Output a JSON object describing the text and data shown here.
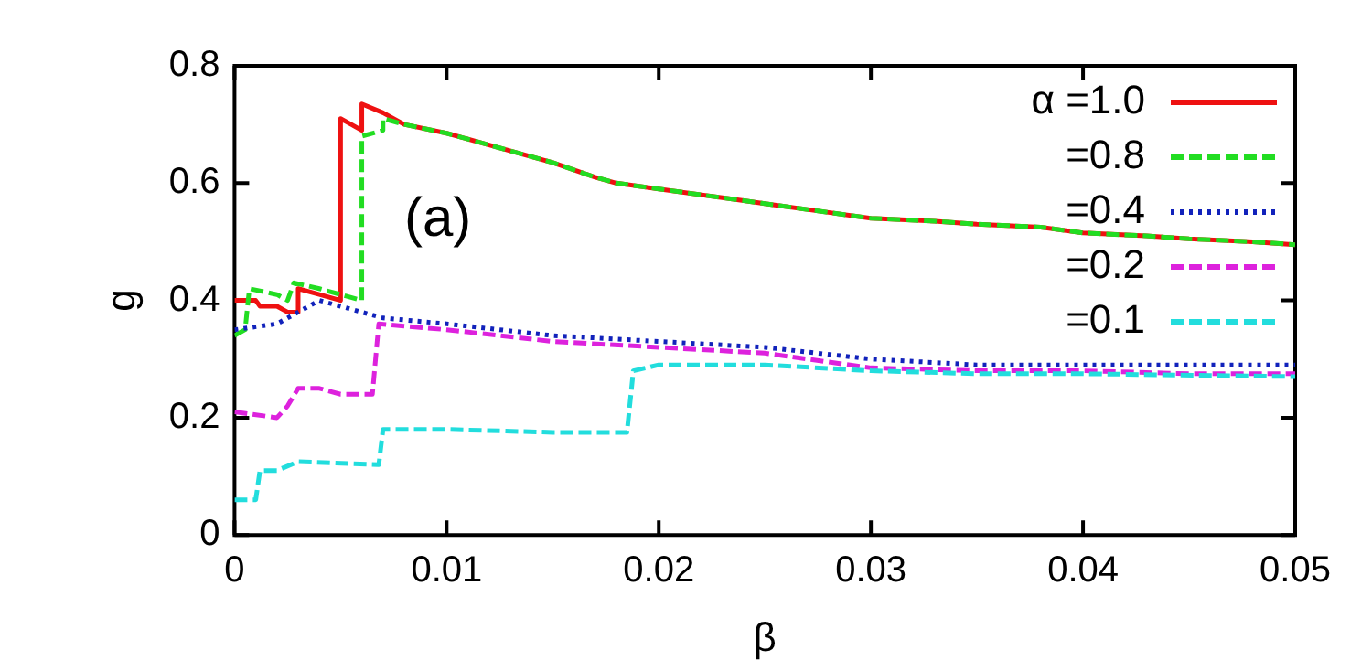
{
  "chart_data": {
    "type": "line",
    "xlabel": "β",
    "ylabel": "g",
    "xlim": [
      0,
      0.05
    ],
    "xticks": [
      0,
      0.01,
      0.02,
      0.03,
      0.04,
      0.05
    ],
    "ylim": [
      0,
      0.8
    ],
    "yticks": [
      0,
      0.2,
      0.4,
      0.6,
      0.8
    ],
    "grid": false,
    "legend": "top right",
    "marker": "none",
    "annotations": [
      "(a)"
    ],
    "series": [
      {
        "name": "α =1.0",
        "color": "#ee1111",
        "line_style": "solid",
        "x": [
          0,
          0.001,
          0.0012,
          0.002,
          0.0025,
          0.003,
          0.003,
          0.004,
          0.005,
          0.005,
          0.0055,
          0.006,
          0.006,
          0.007,
          0.008,
          0.01,
          0.012,
          0.015,
          0.017,
          0.018,
          0.02,
          0.023,
          0.025,
          0.028,
          0.03,
          0.033,
          0.035,
          0.038,
          0.04,
          0.043,
          0.045,
          0.048,
          0.05
        ],
        "values": [
          0.4,
          0.4,
          0.39,
          0.39,
          0.38,
          0.38,
          0.42,
          0.41,
          0.4,
          0.71,
          0.7,
          0.69,
          0.735,
          0.72,
          0.7,
          0.685,
          0.665,
          0.635,
          0.61,
          0.6,
          0.59,
          0.575,
          0.565,
          0.55,
          0.54,
          0.535,
          0.53,
          0.525,
          0.515,
          0.51,
          0.505,
          0.5,
          0.495
        ]
      },
      {
        "name": "=0.8",
        "color": "#22dd22",
        "line_style": "dashed",
        "x": [
          0,
          0.0005,
          0.0007,
          0.002,
          0.0025,
          0.0028,
          0.004,
          0.006,
          0.006,
          0.007,
          0.007,
          0.008,
          0.01,
          0.012,
          0.015,
          0.017,
          0.018,
          0.02,
          0.023,
          0.025,
          0.028,
          0.03,
          0.033,
          0.035,
          0.038,
          0.04,
          0.043,
          0.045,
          0.048,
          0.05
        ],
        "values": [
          0.34,
          0.35,
          0.42,
          0.41,
          0.4,
          0.43,
          0.42,
          0.4,
          0.68,
          0.69,
          0.71,
          0.7,
          0.685,
          0.665,
          0.635,
          0.61,
          0.6,
          0.59,
          0.575,
          0.565,
          0.55,
          0.54,
          0.535,
          0.53,
          0.525,
          0.515,
          0.51,
          0.505,
          0.5,
          0.495
        ]
      },
      {
        "name": "=0.4",
        "color": "#1122bb",
        "line_style": "dotted",
        "x": [
          0,
          0.002,
          0.003,
          0.004,
          0.005,
          0.007,
          0.01,
          0.015,
          0.02,
          0.025,
          0.03,
          0.035,
          0.04,
          0.045,
          0.05
        ],
        "values": [
          0.35,
          0.36,
          0.38,
          0.4,
          0.39,
          0.37,
          0.36,
          0.34,
          0.33,
          0.32,
          0.3,
          0.29,
          0.29,
          0.29,
          0.29
        ]
      },
      {
        "name": "=0.2",
        "color": "#dd22dd",
        "line_style": "dashed",
        "x": [
          0,
          0.002,
          0.0025,
          0.003,
          0.004,
          0.005,
          0.0065,
          0.0068,
          0.01,
          0.015,
          0.02,
          0.025,
          0.03,
          0.035,
          0.04,
          0.045,
          0.05
        ],
        "values": [
          0.21,
          0.2,
          0.22,
          0.25,
          0.25,
          0.24,
          0.24,
          0.36,
          0.35,
          0.33,
          0.32,
          0.31,
          0.285,
          0.28,
          0.28,
          0.275,
          0.275
        ]
      },
      {
        "name": "=0.1",
        "color": "#22dddd",
        "line_style": "dashed",
        "x": [
          0,
          0.001,
          0.0012,
          0.002,
          0.003,
          0.0068,
          0.007,
          0.01,
          0.015,
          0.0185,
          0.0188,
          0.02,
          0.025,
          0.03,
          0.035,
          0.04,
          0.05
        ],
        "values": [
          0.06,
          0.06,
          0.11,
          0.11,
          0.125,
          0.12,
          0.18,
          0.18,
          0.175,
          0.175,
          0.28,
          0.29,
          0.29,
          0.28,
          0.275,
          0.275,
          0.27
        ]
      }
    ]
  }
}
